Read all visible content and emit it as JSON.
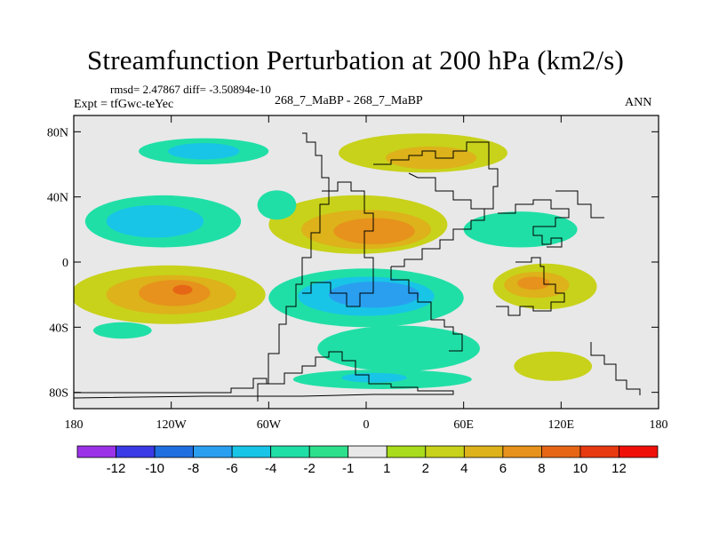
{
  "title": "Streamfunction Perturbation at 200 hPa (km2/s)",
  "stats_text": "rmsd= 2.47867 diff= -3.50894e-10",
  "expt_label": "Expt = tfGwc-teYec",
  "center_label": "268_7_MaBP - 268_7_MaBP",
  "season_label": "ANN",
  "chart_data": {
    "type": "heatmap",
    "projection": "cylindrical-equidistant",
    "variable": "streamfunction perturbation",
    "units": "km2/s",
    "level": "200 hPa",
    "x_range": [
      -180,
      180
    ],
    "y_range": [
      -90,
      90
    ],
    "x_ticks": [
      {
        "value": -180,
        "label": "180"
      },
      {
        "value": -120,
        "label": "120W"
      },
      {
        "value": -60,
        "label": "60W"
      },
      {
        "value": 0,
        "label": "0"
      },
      {
        "value": 60,
        "label": "60E"
      },
      {
        "value": 120,
        "label": "120E"
      },
      {
        "value": 180,
        "label": "180"
      }
    ],
    "y_ticks": [
      {
        "value": 80,
        "label": "80N"
      },
      {
        "value": 40,
        "label": "40N"
      },
      {
        "value": 0,
        "label": "0"
      },
      {
        "value": -40,
        "label": "40S"
      },
      {
        "value": -80,
        "label": "80S"
      }
    ],
    "contour_levels": [
      "-12",
      "-10",
      "-8",
      "-6",
      "-4",
      "-2",
      "-1",
      "1",
      "2",
      "4",
      "6",
      "8",
      "10",
      "12"
    ],
    "colors": [
      "#9b32e8",
      "#3a3ae6",
      "#1f6fe0",
      "#2a9ff0",
      "#18c5e6",
      "#20dfa6",
      "#2ee08c",
      "#e8e8e8",
      "#a8dc1c",
      "#c8d21a",
      "#ddb21a",
      "#e6921c",
      "#e66616",
      "#e83a10",
      "#f0100a"
    ],
    "features": [
      {
        "name": "north-pacific-negative",
        "lon": -100,
        "lat": 68,
        "rx": 40,
        "ry": 8,
        "level": -2
      },
      {
        "name": "north-pacific-core",
        "lon": -100,
        "lat": 68,
        "rx": 22,
        "ry": 5,
        "level": -4
      },
      {
        "name": "eurasia-arctic-positive",
        "lon": 35,
        "lat": 67,
        "rx": 52,
        "ry": 12,
        "level": 2
      },
      {
        "name": "eurasia-arctic-core",
        "lon": 40,
        "lat": 64,
        "rx": 28,
        "ry": 7,
        "level": 4
      },
      {
        "name": "subtropical-pacific-negative",
        "lon": -125,
        "lat": 25,
        "rx": 48,
        "ry": 16,
        "level": -2
      },
      {
        "name": "subtropical-pacific-core",
        "lon": -130,
        "lat": 25,
        "rx": 30,
        "ry": 10,
        "level": -4
      },
      {
        "name": "atlantic-africa-positive",
        "lon": -5,
        "lat": 23,
        "rx": 55,
        "ry": 18,
        "level": 2
      },
      {
        "name": "atlantic-africa-mid",
        "lon": 0,
        "lat": 20,
        "rx": 40,
        "ry": 12,
        "level": 4
      },
      {
        "name": "atlantic-africa-core",
        "lon": 5,
        "lat": 19,
        "rx": 25,
        "ry": 8,
        "level": 6
      },
      {
        "name": "central-asia-negative",
        "lon": 95,
        "lat": 20,
        "rx": 35,
        "ry": 11,
        "level": -2
      },
      {
        "name": "south-pacific-positive",
        "lon": -122,
        "lat": -20,
        "rx": 60,
        "ry": 18,
        "level": 2
      },
      {
        "name": "south-pacific-mid",
        "lon": -120,
        "lat": -20,
        "rx": 40,
        "ry": 12,
        "level": 4
      },
      {
        "name": "south-pacific-core",
        "lon": -118,
        "lat": -19,
        "rx": 22,
        "ry": 8,
        "level": 6
      },
      {
        "name": "south-pacific-peak",
        "lon": -113,
        "lat": -17,
        "rx": 6,
        "ry": 3,
        "level": 8
      },
      {
        "name": "south-atlantic-negative",
        "lon": 0,
        "lat": -22,
        "rx": 60,
        "ry": 18,
        "level": -2
      },
      {
        "name": "south-atlantic-mid",
        "lon": 0,
        "lat": -21,
        "rx": 42,
        "ry": 12,
        "level": -4
      },
      {
        "name": "south-atlantic-core",
        "lon": 5,
        "lat": -20,
        "rx": 28,
        "ry": 8,
        "level": -6
      },
      {
        "name": "indian-ocean-positive",
        "lon": 110,
        "lat": -15,
        "rx": 32,
        "ry": 14,
        "level": 2
      },
      {
        "name": "indian-ocean-mid",
        "lon": 105,
        "lat": -14,
        "rx": 20,
        "ry": 8,
        "level": 4
      },
      {
        "name": "indian-ocean-core",
        "lon": 103,
        "lat": -13,
        "rx": 10,
        "ry": 4,
        "level": 6
      },
      {
        "name": "southern-ocean-negative",
        "lon": 20,
        "lat": -53,
        "rx": 50,
        "ry": 14,
        "level": -2
      },
      {
        "name": "antarctic-negative",
        "lon": 10,
        "lat": -72,
        "rx": 55,
        "ry": 6,
        "level": -2
      },
      {
        "name": "antarctic-core",
        "lon": 5,
        "lat": -71,
        "rx": 20,
        "ry": 3,
        "level": -4
      },
      {
        "name": "south-indian-positive",
        "lon": 115,
        "lat": -64,
        "rx": 24,
        "ry": 9,
        "level": 2
      },
      {
        "name": "south-pacific-high-lat-negative",
        "lon": -150,
        "lat": -42,
        "rx": 18,
        "ry": 5,
        "level": -2
      },
      {
        "name": "north-atlantic-negative",
        "lon": -55,
        "lat": 35,
        "rx": 12,
        "ry": 9,
        "level": -2
      }
    ]
  }
}
